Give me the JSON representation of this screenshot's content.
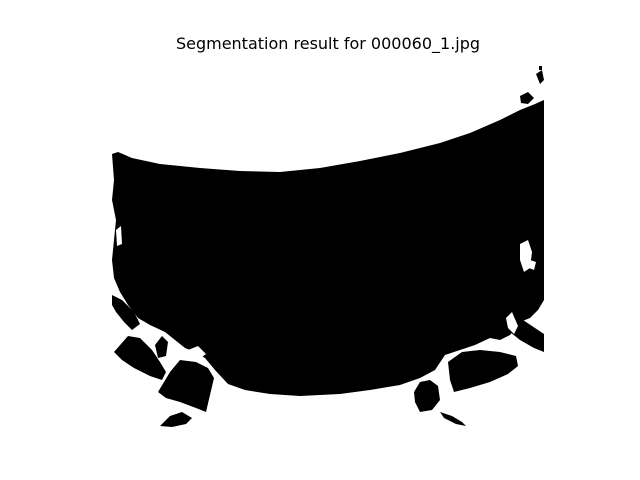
{
  "figure": {
    "title": "Segmentation result for 000060_1.jpg",
    "foreground_color": "#000000",
    "background_color": "#ffffff"
  }
}
